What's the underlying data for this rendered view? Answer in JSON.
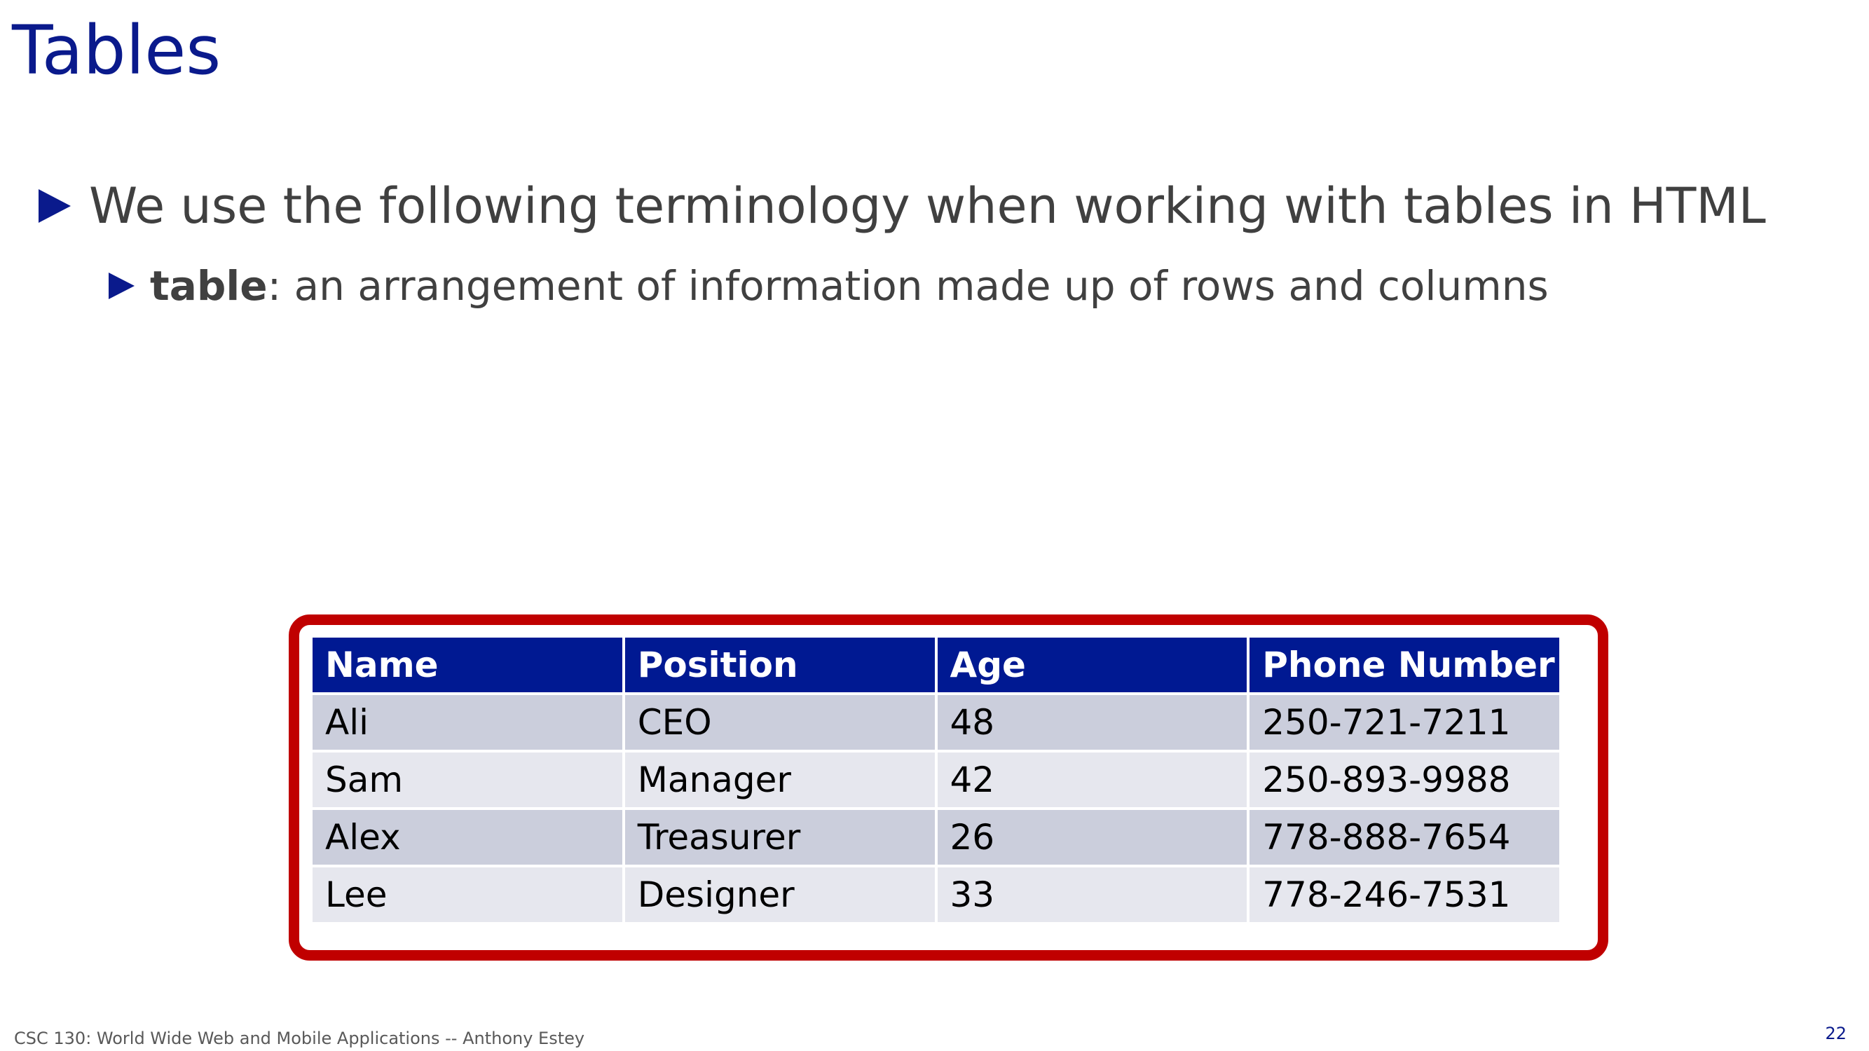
{
  "slide": {
    "title": "Tables",
    "bullets": {
      "level1": "We use the following terminology when working with tables in HTML",
      "level2_term": "table",
      "level2_text": ": an arrangement of information made up of rows and columns"
    },
    "colors": {
      "title": "#0a1a8c",
      "bullet_marker": "#0a1a8c",
      "frame": "#c00000",
      "table_header": "#001992",
      "row_odd": "#cbcedc",
      "row_even": "#e6e7ee"
    }
  },
  "table": {
    "headers": [
      "Name",
      "Position",
      "Age",
      "Phone Number"
    ],
    "rows": [
      [
        "Ali",
        "CEO",
        "48",
        "250-721-7211"
      ],
      [
        "Sam",
        "Manager",
        "42",
        "250-893-9988"
      ],
      [
        "Alex",
        "Treasurer",
        "26",
        "778-888-7654"
      ],
      [
        "Lee",
        "Designer",
        "33",
        "778-246-7531"
      ]
    ]
  },
  "footer": {
    "text": "CSC 130: World Wide Web and Mobile Applications -- Anthony Estey",
    "page_number": "22"
  }
}
